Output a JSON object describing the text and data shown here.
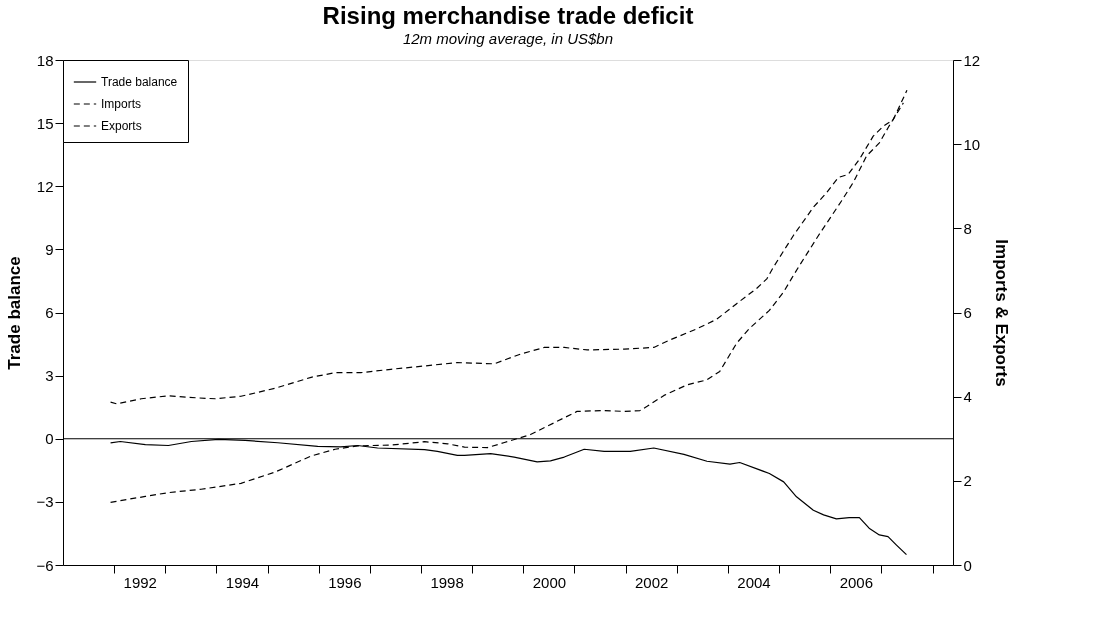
{
  "chart_data": {
    "type": "line",
    "title": "Rising merchandise trade deficit",
    "subtitle": "12m moving average, in US$bn",
    "ylabel": "Trade balance",
    "y2label": "Imports & Exports",
    "xlim": [
      1991.0,
      2008.4
    ],
    "xticks": [
      {
        "value": 1992,
        "label": null
      },
      {
        "value": 1992.5,
        "label": "1992"
      },
      {
        "value": 1993,
        "label": null
      },
      {
        "value": 1994,
        "label": null
      },
      {
        "value": 1994.5,
        "label": "1994"
      },
      {
        "value": 1995,
        "label": null
      },
      {
        "value": 1996,
        "label": null
      },
      {
        "value": 1996.5,
        "label": "1996"
      },
      {
        "value": 1997,
        "label": null
      },
      {
        "value": 1998,
        "label": null
      },
      {
        "value": 1998.5,
        "label": "1998"
      },
      {
        "value": 1999,
        "label": null
      },
      {
        "value": 2000,
        "label": null
      },
      {
        "value": 2000.5,
        "label": "2000"
      },
      {
        "value": 2001,
        "label": null
      },
      {
        "value": 2002,
        "label": null
      },
      {
        "value": 2002.5,
        "label": "2002"
      },
      {
        "value": 2003,
        "label": null
      },
      {
        "value": 2004,
        "label": null
      },
      {
        "value": 2004.5,
        "label": "2004"
      },
      {
        "value": 2005,
        "label": null
      },
      {
        "value": 2006,
        "label": null
      },
      {
        "value": 2006.5,
        "label": "2006"
      },
      {
        "value": 2007,
        "label": null
      },
      {
        "value": 2008,
        "label": null
      }
    ],
    "ylim": [
      -6,
      18
    ],
    "yticks": [
      -6,
      -3,
      0,
      3,
      6,
      9,
      12,
      15,
      18
    ],
    "y2lim": [
      0,
      12
    ],
    "y2ticks": [
      0,
      2,
      4,
      6,
      8,
      10,
      12
    ],
    "grid": false,
    "legend": "top left",
    "ref_lines": [
      {
        "axis": "y",
        "value": 0,
        "color": "#000000"
      }
    ],
    "series": [
      {
        "name": "Trade balance",
        "color": "#000000",
        "line_style": "solid",
        "x": [
          1991.93,
          1992.12,
          1992.61,
          1993.06,
          1993.51,
          1994.04,
          1994.56,
          1995.2,
          1995.98,
          1996.43,
          1996.76,
          1997.15,
          1998.07,
          1998.32,
          1998.71,
          1998.85,
          1999.36,
          1999.82,
          2000.27,
          2000.53,
          2000.8,
          2001.19,
          2001.58,
          2002.09,
          2002.55,
          2003.14,
          2003.59,
          2004.04,
          2004.23,
          2004.81,
          2005.09,
          2005.34,
          2005.67,
          2005.87,
          2006.12,
          2006.37,
          2006.57,
          2006.76,
          2006.96,
          2007.13,
          2007.29,
          2007.49
        ],
        "values": [
          -0.2,
          -0.13,
          -0.28,
          -0.32,
          -0.13,
          -0.03,
          -0.08,
          -0.19,
          -0.36,
          -0.39,
          -0.32,
          -0.44,
          -0.52,
          -0.6,
          -0.79,
          -0.79,
          -0.71,
          -0.87,
          -1.1,
          -1.05,
          -0.87,
          -0.5,
          -0.6,
          -0.6,
          -0.44,
          -0.74,
          -1.07,
          -1.21,
          -1.13,
          -1.65,
          -2.05,
          -2.76,
          -3.4,
          -3.62,
          -3.81,
          -3.75,
          -3.75,
          -4.25,
          -4.57,
          -4.65,
          -5.04,
          -5.51
        ]
      },
      {
        "name": "Imports",
        "color": "#000000",
        "line_style": "dashed",
        "axis": "y2",
        "x": [
          1991.93,
          1992.05,
          1992.53,
          1993.06,
          1993.64,
          1993.98,
          1994.48,
          1995.15,
          1995.85,
          1996.32,
          1996.82,
          1997.41,
          1998.07,
          1998.71,
          1999.43,
          1999.94,
          2000.41,
          2000.8,
          2001.25,
          2001.97,
          2002.55,
          2002.87,
          2003.39,
          2003.78,
          2004.17,
          2004.56,
          2004.76,
          2004.89,
          2005.28,
          2005.67,
          2005.93,
          2006.16,
          2006.35,
          2006.57,
          2006.84,
          2007.04,
          2007.23,
          2007.5
        ],
        "values": [
          3.87,
          3.83,
          3.95,
          4.02,
          3.97,
          3.95,
          4.01,
          4.2,
          4.46,
          4.57,
          4.57,
          4.65,
          4.73,
          4.81,
          4.78,
          5.01,
          5.17,
          5.17,
          5.11,
          5.13,
          5.17,
          5.35,
          5.61,
          5.84,
          6.21,
          6.57,
          6.8,
          7.08,
          7.83,
          8.5,
          8.85,
          9.21,
          9.28,
          9.64,
          10.19,
          10.43,
          10.58,
          11.28
        ]
      },
      {
        "name": "Exports",
        "color": "#000000",
        "line_style": "dashed",
        "axis": "y2",
        "x": [
          1991.93,
          1992.61,
          1993.06,
          1993.7,
          1994.48,
          1995.15,
          1995.85,
          1996.32,
          1996.76,
          1997.41,
          1998.07,
          1998.52,
          1998.85,
          1999.3,
          1999.63,
          2000.14,
          2000.47,
          2001.05,
          2001.58,
          2001.97,
          2002.28,
          2002.42,
          2002.75,
          2003.2,
          2003.59,
          2003.84,
          2004.17,
          2004.42,
          2004.81,
          2005.09,
          2005.24,
          2005.38,
          2005.77,
          2006.22,
          2006.45,
          2006.71,
          2006.96,
          2007.15,
          2007.43
        ],
        "values": [
          1.49,
          1.63,
          1.72,
          1.8,
          1.94,
          2.21,
          2.59,
          2.75,
          2.83,
          2.85,
          2.93,
          2.88,
          2.8,
          2.79,
          2.91,
          3.1,
          3.3,
          3.65,
          3.67,
          3.65,
          3.67,
          3.77,
          4.03,
          4.28,
          4.4,
          4.6,
          5.27,
          5.62,
          6.05,
          6.49,
          6.8,
          7.08,
          7.83,
          8.65,
          9.09,
          9.72,
          10.03,
          10.43,
          10.98
        ]
      }
    ]
  }
}
